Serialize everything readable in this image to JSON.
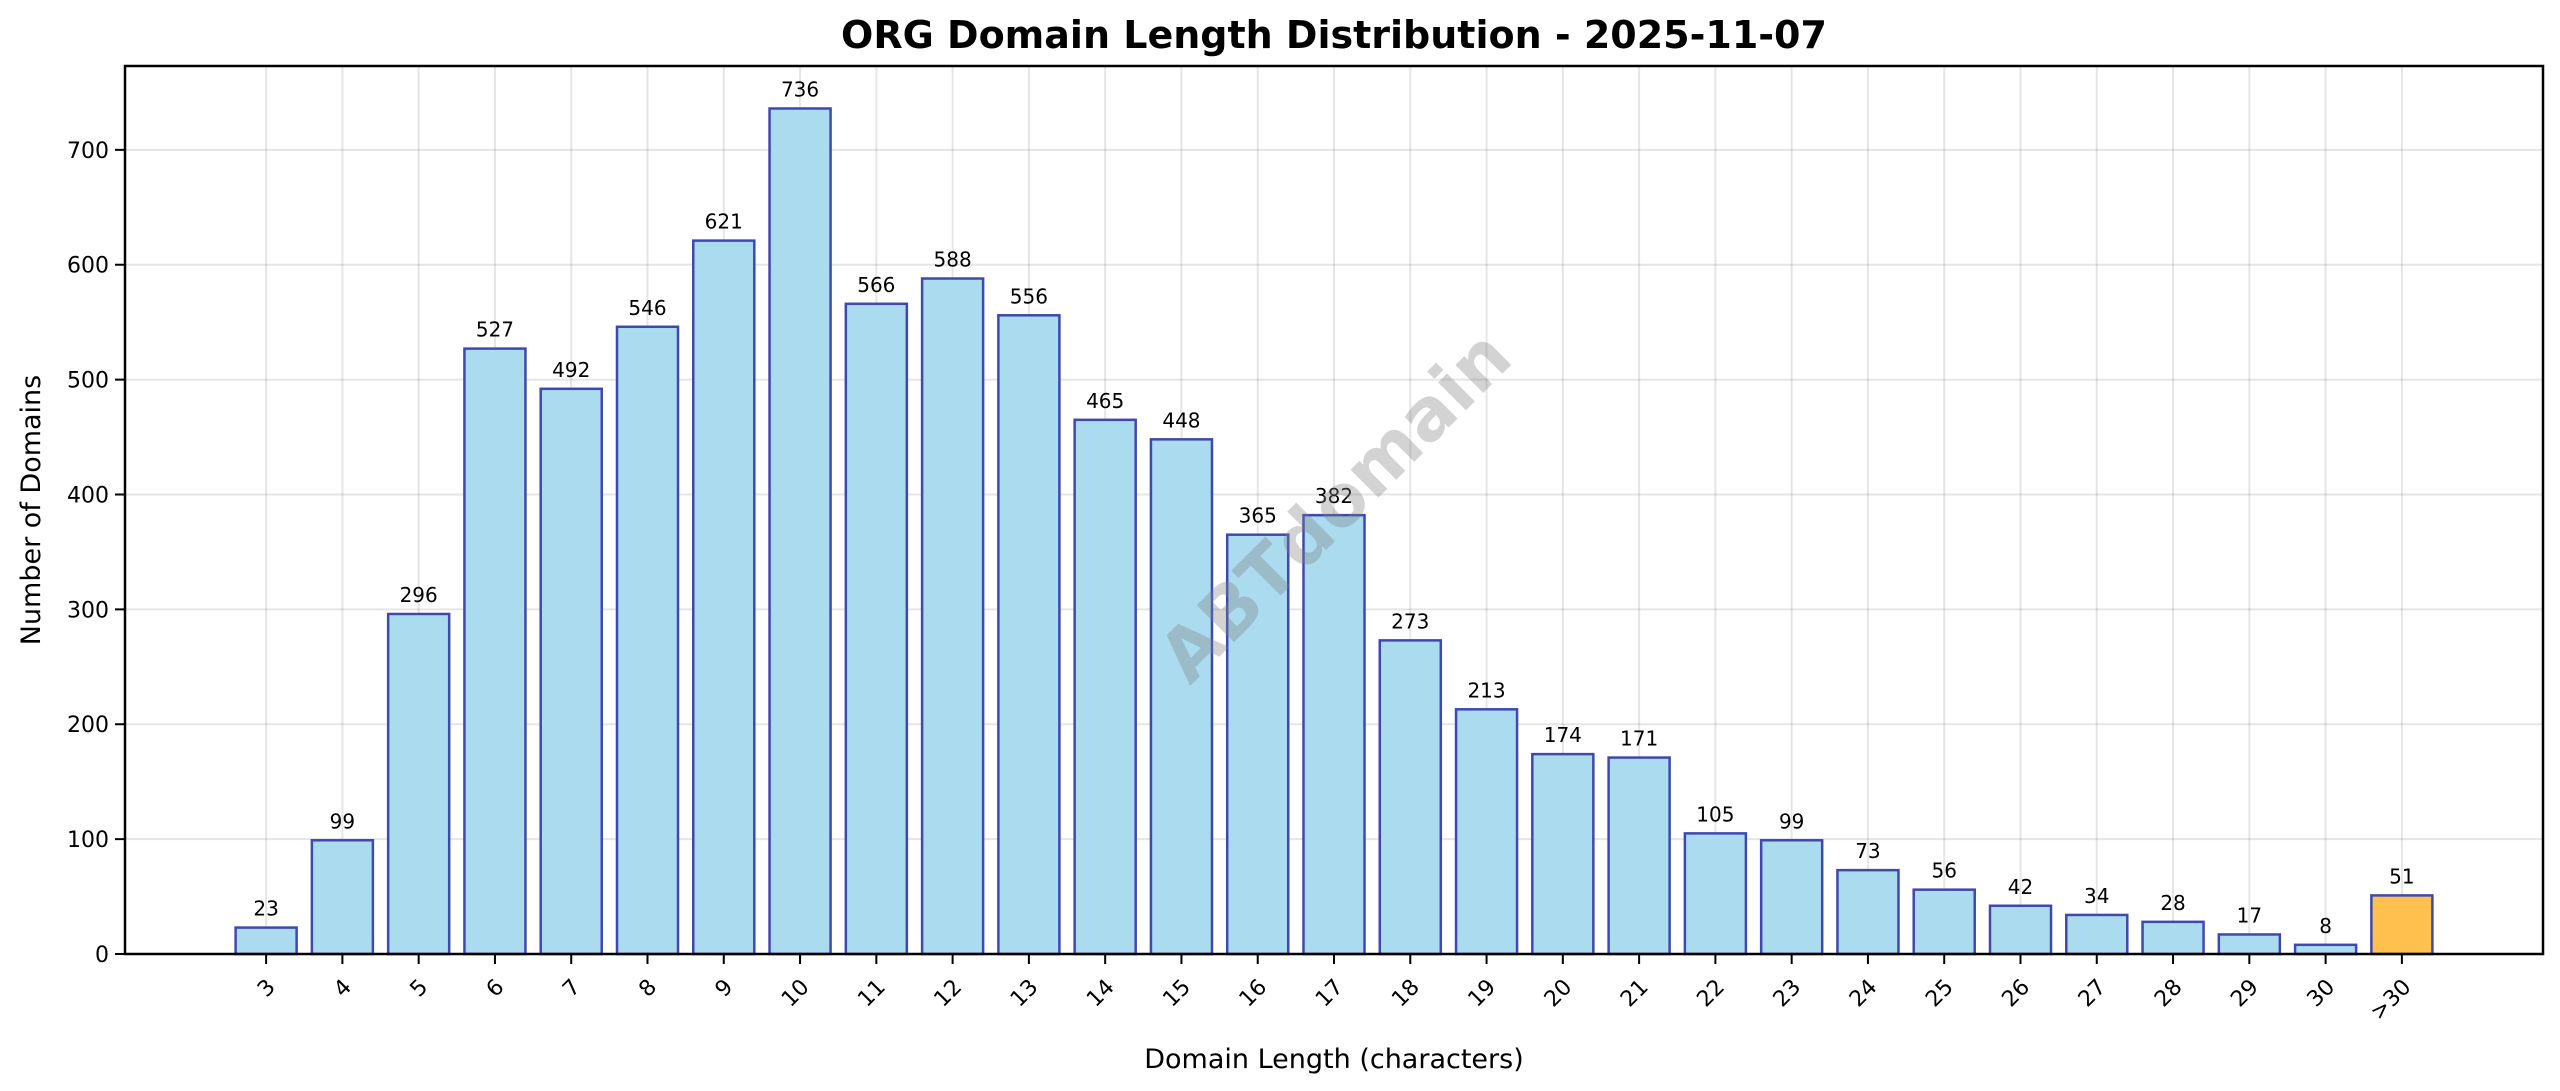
{
  "chart_data": {
    "type": "bar",
    "title": "ORG Domain Length Distribution - 2025-11-07",
    "xlabel": "Domain Length (characters)",
    "ylabel": "Number of Domains",
    "categories": [
      "3",
      "4",
      "5",
      "6",
      "7",
      "8",
      "9",
      "10",
      "11",
      "12",
      "13",
      "14",
      "15",
      "16",
      "17",
      "18",
      "19",
      "20",
      "21",
      "22",
      "23",
      "24",
      "25",
      "26",
      "27",
      "28",
      "29",
      "30",
      ">30"
    ],
    "values": [
      23,
      99,
      296,
      527,
      492,
      546,
      621,
      736,
      566,
      588,
      556,
      465,
      448,
      365,
      382,
      273,
      213,
      174,
      171,
      105,
      99,
      73,
      56,
      42,
      34,
      28,
      17,
      8,
      51
    ],
    "ylim": [
      0,
      773
    ],
    "yticks": [
      0,
      100,
      200,
      300,
      400,
      500,
      600,
      700
    ],
    "grid": true,
    "colors": {
      "bar": "#ABDBEF",
      "highlight": "#FFC04D",
      "edge": "#3F48B0"
    },
    "highlight_category": ">30",
    "watermark": "ABTdomain"
  }
}
